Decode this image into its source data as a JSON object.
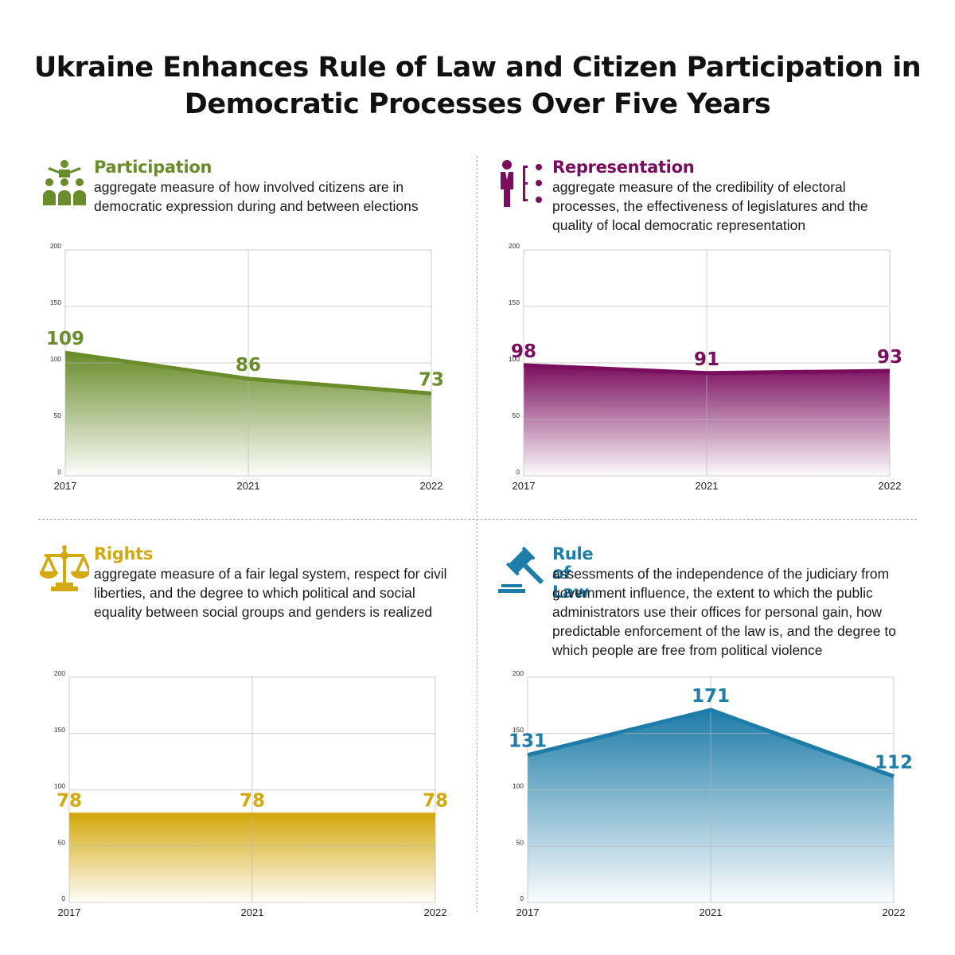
{
  "title_line1": "Ukraine Enhances Rule of Law and Citizen Participation in",
  "title_line2": "Democratic Processes Over Five Years",
  "panels": [
    {
      "heading": "Participation",
      "description": "aggregate measure of how involved citizens are in democratic expression during and between elections",
      "icon": "people-group-icon",
      "color": "#6a8c2a"
    },
    {
      "heading": "Representation",
      "description": "aggregate measure of the credibility of electoral processes, the effectiveness of legislatures and the quality of local democratic representation",
      "icon": "person-options-icon",
      "color": "#7a0e5e"
    },
    {
      "heading": "Rights",
      "description": "aggregate measure of a fair legal system, respect for civil liberties, and the degree to which political and social equality between social groups and genders is realized",
      "icon": "scales-icon",
      "color": "#d4a90f"
    },
    {
      "heading": "Rule of Law",
      "description": "assessments of the independence of the judiciary from government influence, the extent to which the public administrators use their offices for personal gain, how predictable enforcement of the law is, and the degree to which people are free from political violence",
      "icon": "gavel-icon",
      "color": "#1e7ca8"
    }
  ],
  "chart_data": [
    {
      "type": "area",
      "x": [
        "2017",
        "2021",
        "2022"
      ],
      "values": [
        109,
        86,
        73
      ],
      "ylim": [
        0,
        200
      ],
      "yticks": [
        "0",
        "50",
        "100",
        "150",
        "200"
      ],
      "data_labels": [
        "109",
        "86",
        "73"
      ],
      "grid": true
    },
    {
      "type": "area",
      "x": [
        "2017",
        "2021",
        "2022"
      ],
      "values": [
        98,
        91,
        93
      ],
      "ylim": [
        0,
        200
      ],
      "yticks": [
        "0",
        "50",
        "100",
        "150",
        "200"
      ],
      "data_labels": [
        "98",
        "91",
        "93"
      ],
      "grid": true
    },
    {
      "type": "area",
      "x": [
        "2017",
        "2021",
        "2022"
      ],
      "values": [
        78,
        78,
        78
      ],
      "ylim": [
        0,
        200
      ],
      "yticks": [
        "0",
        "50",
        "100",
        "150",
        "200"
      ],
      "data_labels": [
        "78",
        "78",
        "78"
      ],
      "grid": true
    },
    {
      "type": "area",
      "x": [
        "2017",
        "2021",
        "2022"
      ],
      "values": [
        131,
        171,
        112
      ],
      "ylim": [
        0,
        200
      ],
      "yticks": [
        "0",
        "50",
        "100",
        "150",
        "200"
      ],
      "data_labels": [
        "131",
        "171",
        "112"
      ],
      "grid": true
    }
  ]
}
